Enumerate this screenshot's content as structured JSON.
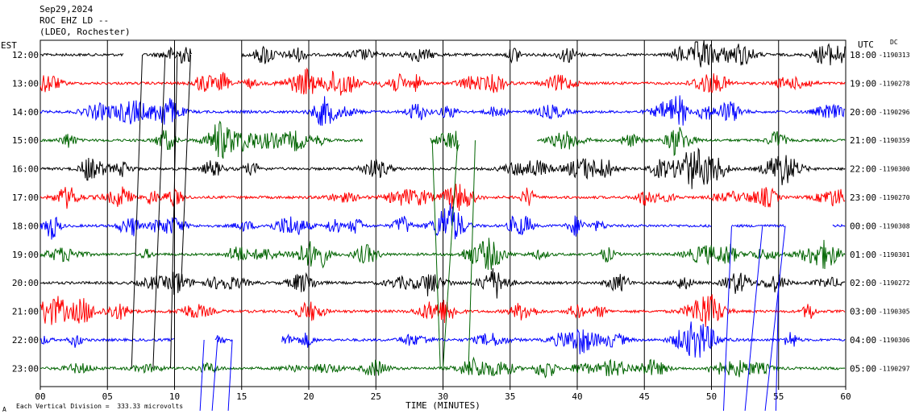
{
  "header": {
    "date": "Sep29,2024",
    "station": "ROC EHZ LD --",
    "network": "(LDEO, Rochester)"
  },
  "left_tz": "EST",
  "right_tz": "UTC",
  "dc_label": "DC",
  "scale_note": "Each Vertical Division =  333.33 microvolts",
  "corner_mark": "A",
  "colors": {
    "black": "#000000",
    "red": "#ff0000",
    "blue": "#0000ff",
    "green": "#006400"
  },
  "chart_data": {
    "type": "line",
    "title": "",
    "xlabel": "TIME (MINUTES)",
    "ylabel": "",
    "xlim": [
      0,
      60
    ],
    "x_ticks": [
      "00",
      "05",
      "10",
      "15",
      "20",
      "25",
      "30",
      "35",
      "40",
      "45",
      "50",
      "55",
      "60"
    ],
    "grid": true,
    "rows": [
      {
        "left": "12:00",
        "right": "18:00",
        "dc": "-1190313",
        "color": "black"
      },
      {
        "left": "13:00",
        "right": "19:00",
        "dc": "-1190278",
        "color": "red"
      },
      {
        "left": "14:00",
        "right": "20:00",
        "dc": "-1190296",
        "color": "blue"
      },
      {
        "left": "15:00",
        "right": "21:00",
        "dc": "-1190359",
        "color": "green"
      },
      {
        "left": "16:00",
        "right": "22:00",
        "dc": "-1190300",
        "color": "black"
      },
      {
        "left": "17:00",
        "right": "23:00",
        "dc": "-1190270",
        "color": "red"
      },
      {
        "left": "18:00",
        "right": "00:00",
        "dc": "-1190308",
        "color": "blue"
      },
      {
        "left": "19:00",
        "right": "01:00",
        "dc": "-1190301",
        "color": "green"
      },
      {
        "left": "20:00",
        "right": "02:00",
        "dc": "-1190272",
        "color": "black"
      },
      {
        "left": "21:00",
        "right": "03:00",
        "dc": "-1190305",
        "color": "red"
      },
      {
        "left": "22:00",
        "right": "04:00",
        "dc": "-1190306",
        "color": "blue"
      },
      {
        "left": "23:00",
        "right": "05:00",
        "dc": "-1190297",
        "color": "green"
      }
    ],
    "data_gaps_minutes": [
      {
        "row": 0,
        "from": 6.2,
        "to": 7.6
      },
      {
        "row": 0,
        "from": 11.3,
        "to": 15.0
      },
      {
        "row": 3,
        "from": 24.0,
        "to": 29.0
      },
      {
        "row": 3,
        "from": 31.2,
        "to": 37.0
      },
      {
        "row": 6,
        "from": 50.0,
        "to": 51.5
      },
      {
        "row": 6,
        "from": 55.5,
        "to": 59.0
      },
      {
        "row": 10,
        "from": 10.0,
        "to": 13.0
      },
      {
        "row": 10,
        "from": 14.3,
        "to": 18.0
      }
    ]
  }
}
